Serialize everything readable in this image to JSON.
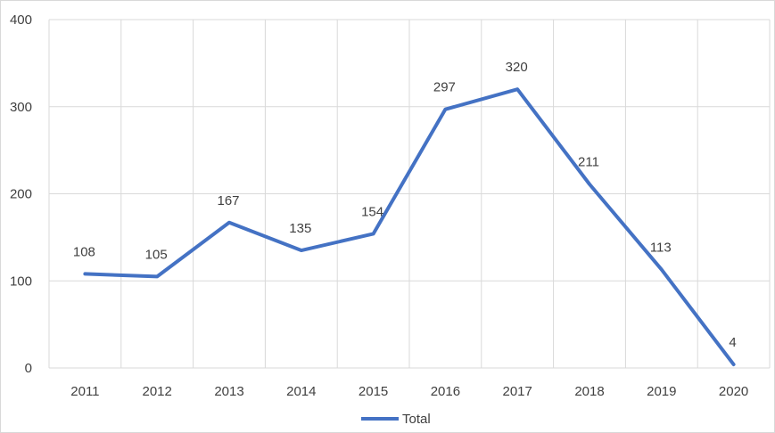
{
  "chart_data": {
    "type": "line",
    "title": "",
    "xlabel": "",
    "ylabel": "",
    "categories": [
      "2011",
      "2012",
      "2013",
      "2014",
      "2015",
      "2016",
      "2017",
      "2018",
      "2019",
      "2020"
    ],
    "series": [
      {
        "name": "Total",
        "values": [
          108,
          105,
          167,
          135,
          154,
          297,
          320,
          211,
          113,
          4
        ],
        "color": "#4472c4"
      }
    ],
    "ylim": [
      0,
      400
    ],
    "yticks": [
      "0",
      "100",
      "200",
      "300",
      "400"
    ],
    "data_labels": [
      "108",
      "105",
      "167",
      "135",
      "154",
      "297",
      "320",
      "211",
      "113",
      "4"
    ],
    "grid": true,
    "gridline_color": "#d9d9d9",
    "legend": {
      "position": "bottom",
      "entries": [
        "Total"
      ]
    }
  }
}
